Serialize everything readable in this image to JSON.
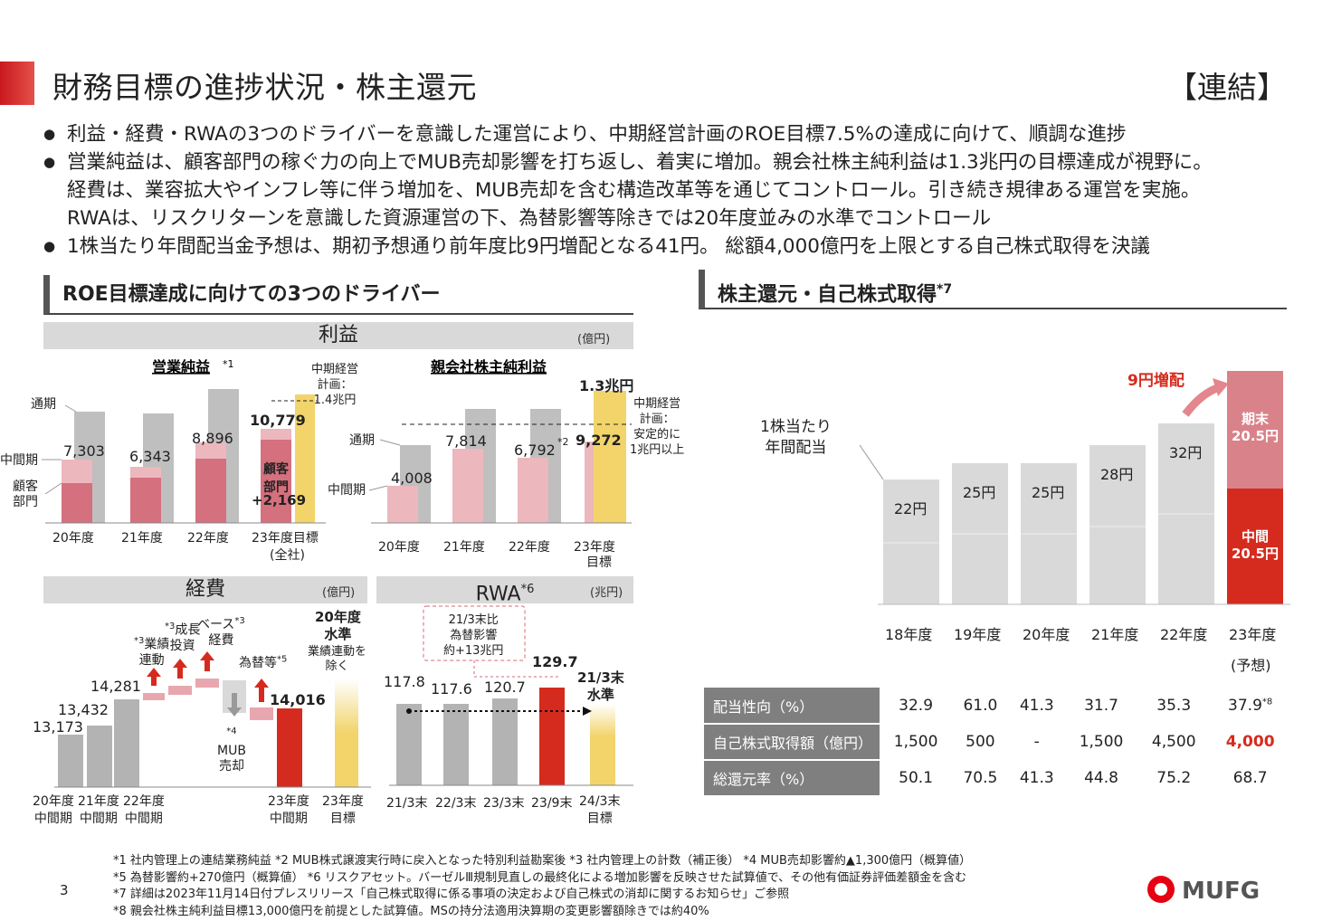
{
  "page": {
    "title": "財務目標の進捗状況・株主還元",
    "tag": "【連結】",
    "page_number": "3"
  },
  "bullets": [
    "利益・経費・RWAの3つのドライバーを意識した運営により、中期経営計画のROE目標7.5%の達成に向けて、順調な進捗",
    "営業純益は、顧客部門の稼ぐ力の向上でMUB売却影響を打ち返し、着実に増加。親会社株主純利益は1.3兆円の目標達成が視野に。",
    "経費は、業容拡大やインフレ等に伴う増加を、MUB売却を含む構造改革等を通じてコントロール。引き続き規律ある運営を実施。",
    "RWAは、リスクリターンを意識した資源運営の下、為替影響等除きでは20年度並みの水準でコントロール",
    "1株当たり年間配当金予想は、期初予想通り前年度比9円増配となる41円。 総額4,000億円を上限とする自己株式取得を決議"
  ],
  "left": {
    "title": "ROE目標達成に向けての3つのドライバー",
    "profit": {
      "band": "利益",
      "unit": "(億円)",
      "op": {
        "title": "営業純益",
        "fn": "*1",
        "label_full": "通期",
        "label_half": "中間期",
        "label_cust": "顧客\n部門",
        "values": [
          "7,303",
          "6,343",
          "8,896",
          "10,779"
        ],
        "cats": [
          "20年度",
          "21年度",
          "22年度",
          "23年度目標",
          "(全社)"
        ],
        "plan": [
          "中期経営",
          "計画：",
          "1.4兆円"
        ],
        "cust_label": "顧客\n部門",
        "cust_value": "+2,169"
      },
      "ni": {
        "title": "親会社株主純利益",
        "target": "1.3兆円",
        "label_full": "通期",
        "label_half": "中間期",
        "values": [
          "4,008",
          "7,814",
          "6,792",
          "9,272"
        ],
        "fn": "*2",
        "cats": [
          "20年度",
          "21年度",
          "22年度",
          "23年度",
          "目標"
        ],
        "plan": [
          "中期経営",
          "計画：",
          "安定的に",
          "1兆円以上"
        ]
      }
    },
    "expense": {
      "band": "経費",
      "unit": "(億円)",
      "values": [
        "13,173",
        "13,432",
        "14,281",
        "14,016"
      ],
      "steps": [
        {
          "t": "業績\n連動",
          "fn": "*3"
        },
        {
          "t": "成長\n投資",
          "fn": "*3"
        },
        {
          "t": "ベース\n経費",
          "fn": "*3"
        },
        {
          "t": "MUB\n売却",
          "fn": "*4"
        },
        {
          "t": "為替等",
          "fn": "*5"
        }
      ],
      "target": [
        "20年度",
        "水準"
      ],
      "target_note": [
        "業績連動を",
        "除く"
      ],
      "cats": [
        "20年度\n中間期",
        "21年度\n中間期",
        "22年度\n中間期",
        "23年度\n中間期",
        "23年度\n目標"
      ]
    },
    "rwa": {
      "band": "RWA",
      "fn": "*6",
      "unit": "(兆円)",
      "values": [
        "117.8",
        "117.6",
        "120.7",
        "129.7"
      ],
      "note": [
        "21/3末比",
        "為替影響",
        "約+13兆円"
      ],
      "target": [
        "21/3末",
        "水準"
      ],
      "cats": [
        "21/3末",
        "22/3末",
        "23/3末",
        "23/9末",
        "24/3末\n目標"
      ]
    }
  },
  "right": {
    "title": "株主還元・自己株式取得",
    "fn": "*7",
    "dps_label": [
      "1株当たり",
      "年間配当"
    ],
    "increase": "9円増配",
    "years": [
      "18年度",
      "19年度",
      "20年度",
      "21年度",
      "22年度",
      "23年度"
    ],
    "forecast": "(予想)",
    "dps": [
      "22円",
      "25円",
      "25円",
      "28円",
      "32円"
    ],
    "dps_values": [
      22,
      25,
      25,
      28,
      32,
      41
    ],
    "final_top": [
      "期末",
      "20.5円"
    ],
    "final_bottom": [
      "中間",
      "20.5円"
    ],
    "table": [
      {
        "h": "配当性向（%）",
        "v": [
          "32.9",
          "61.0",
          "41.3",
          "31.7",
          "35.3",
          "37.9"
        ],
        "fn": "*8"
      },
      {
        "h": "自己株式取得額（億円）",
        "v": [
          "1,500",
          "500",
          "-",
          "1,500",
          "4,500",
          "4,000"
        ]
      },
      {
        "h": "総還元率（%）",
        "v": [
          "50.1",
          "70.5",
          "41.3",
          "44.8",
          "75.2",
          "68.7"
        ]
      }
    ]
  },
  "footnotes": [
    "*1  社内管理上の連結業務純益    *2  MUB株式譲渡実行時に戻入となった特別利益勘案後   *3  社内管理上の計数（補正後）   *4  MUB売却影響約▲1,300億円（概算値）",
    "*5  為替影響約+270億円（概算値）  *6  リスクアセット。バーゼルⅢ規制見直しの最終化による増加影響を反映させた試算値で、その他有価証券評価差額金を含む",
    "*7  詳細は2023年11月14日付プレスリリース「自己株式取得に係る事項の決定および自己株式の消却に関するお知らせ」ご参照",
    "*8  親会社株主純利益目標13,000億円を前提とした試算値。MSの持分法適用決算期の変更影響額除きでは約40%"
  ],
  "logo": "MUFG",
  "colors": {
    "accent": "#d52b1e",
    "pink": "#e8a7ae",
    "rose": "#d5707e",
    "gray": "#bfbfbf",
    "yellow": "#f2d46b"
  }
}
